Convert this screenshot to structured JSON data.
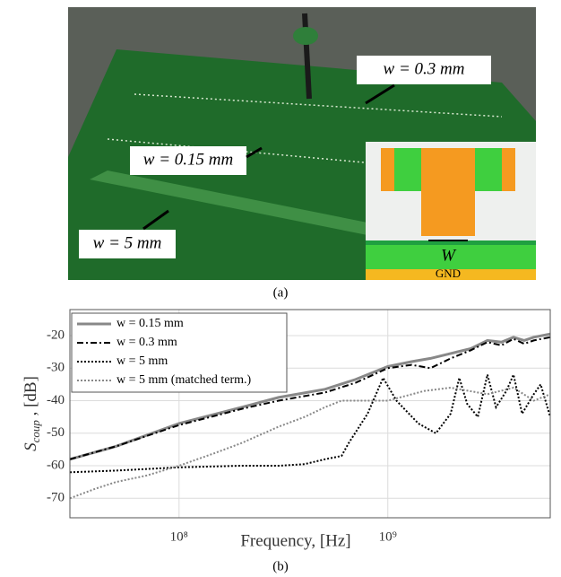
{
  "figure": {
    "photo_labels": [
      "w = 0.3 mm",
      "w = 0.15 mm",
      "w = 5 mm"
    ],
    "inset_width": "W",
    "inset_ground": "GND",
    "caption_a": "(a)",
    "caption_b": "(b)"
  },
  "chart_data": {
    "type": "line",
    "xscale": "log",
    "xlabel": "Frequency, [Hz]",
    "ylabel": {
      "symbol": "S",
      "subscript": "coup",
      "unit": " , [dB]"
    },
    "xlim": [
      30000000,
      6000000000
    ],
    "ylim": [
      -76,
      -12
    ],
    "xticks": [
      {
        "value": 100000000,
        "label": "10⁸"
      },
      {
        "value": 1000000000,
        "label": "10⁹"
      }
    ],
    "yticks": [
      -70,
      -60,
      -50,
      -40,
      -30,
      -20
    ],
    "grid": true,
    "legend": "upper-left",
    "series": [
      {
        "name": "w = 0.15 mm",
        "color": "#888888",
        "style": "solid",
        "width": 3,
        "x": [
          30000000,
          50000000,
          100000000,
          200000000,
          300000000,
          500000000,
          700000000,
          1000000000,
          1300000000,
          1600000000,
          2000000000,
          2500000000,
          3000000000,
          3500000000,
          4000000000,
          4500000000,
          5000000000,
          6000000000
        ],
        "values": [
          -58,
          -54,
          -47,
          -42,
          -39,
          -36.5,
          -33.5,
          -29.5,
          -28,
          -27,
          -25.5,
          -24,
          -21.5,
          -22,
          -20.5,
          -21.5,
          -20.5,
          -19.5
        ]
      },
      {
        "name": "w = 0.3 mm",
        "color": "#000000",
        "style": "dashdot",
        "width": 2,
        "x": [
          30000000,
          50000000,
          100000000,
          200000000,
          300000000,
          500000000,
          700000000,
          1000000000,
          1300000000,
          1600000000,
          2000000000,
          2500000000,
          3000000000,
          3500000000,
          4000000000,
          4500000000,
          5000000000,
          6000000000
        ],
        "values": [
          -58,
          -54,
          -47.5,
          -42.5,
          -40,
          -37.5,
          -34.5,
          -30,
          -29,
          -30,
          -27,
          -24.5,
          -22,
          -23,
          -21,
          -22.5,
          -21.5,
          -20.5
        ]
      },
      {
        "name": "w = 5 mm",
        "color": "#000000",
        "style": "dotted",
        "width": 2,
        "x": [
          30000000,
          50000000,
          100000000,
          200000000,
          300000000,
          400000000,
          500000000,
          600000000,
          650000000,
          800000000,
          950000000,
          1100000000,
          1400000000,
          1700000000,
          2000000000,
          2200000000,
          2400000000,
          2700000000,
          3000000000,
          3300000000,
          3700000000,
          4000000000,
          4400000000,
          5000000000,
          5400000000,
          6000000000
        ],
        "values": [
          -62,
          -61.5,
          -60.5,
          -60,
          -60,
          -59.5,
          -58,
          -57,
          -53,
          -44,
          -33,
          -40,
          -47,
          -50,
          -44,
          -33,
          -41,
          -45,
          -32,
          -42,
          -37,
          -32,
          -44,
          -38,
          -35,
          -45
        ]
      },
      {
        "name": "w = 5 mm (matched term.)",
        "color": "#888888",
        "style": "dotted",
        "width": 2,
        "x": [
          30000000,
          40000000,
          50000000,
          70000000,
          100000000,
          150000000,
          200000000,
          300000000,
          400000000,
          500000000,
          600000000,
          800000000,
          1000000000,
          1500000000,
          2000000000,
          3000000000,
          4000000000,
          5000000000,
          6000000000
        ],
        "values": [
          -70,
          -67,
          -65,
          -63,
          -60,
          -56,
          -53,
          -48,
          -45,
          -42,
          -40,
          -40,
          -40,
          -37,
          -36,
          -38,
          -36,
          -40,
          -38
        ]
      }
    ]
  }
}
